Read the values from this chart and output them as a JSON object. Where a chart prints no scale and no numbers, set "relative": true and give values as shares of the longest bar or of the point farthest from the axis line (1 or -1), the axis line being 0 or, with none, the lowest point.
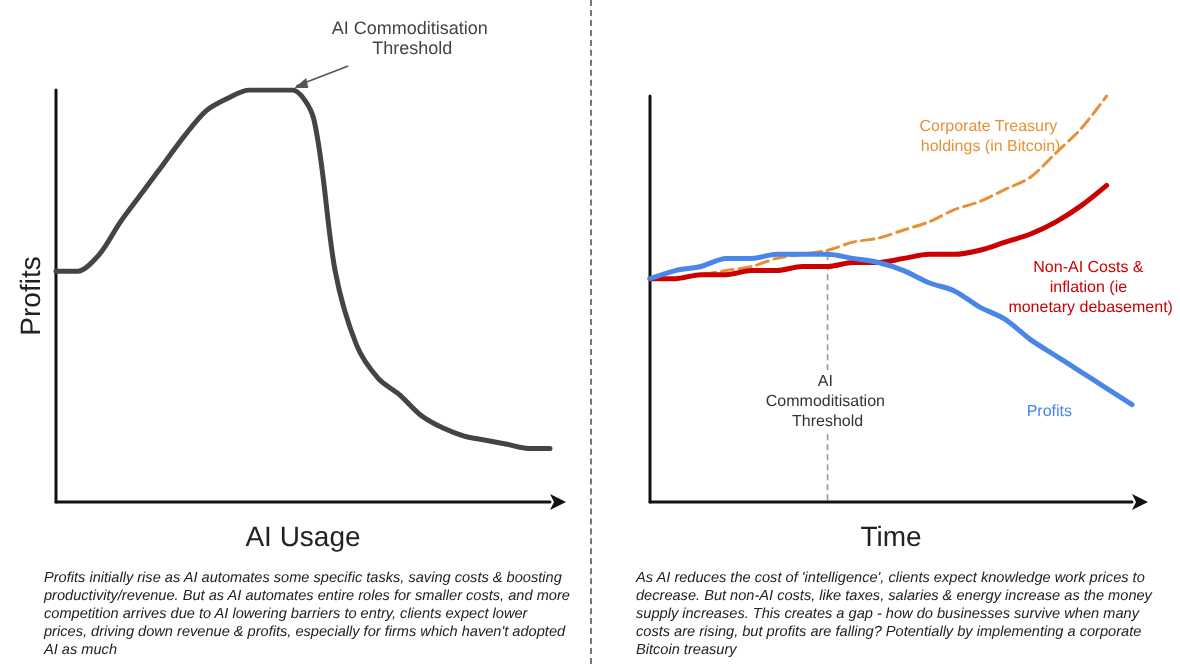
{
  "chart_data": [
    {
      "type": "line",
      "xlabel": "AI Usage",
      "ylabel": "Profits",
      "relative": true,
      "categories": [
        null,
        null,
        null,
        null,
        null,
        null,
        null,
        null,
        null,
        null,
        null,
        null,
        null,
        null,
        null,
        null,
        null,
        null,
        null,
        null,
        null,
        null,
        null,
        null
      ],
      "series": [
        {
          "color": "#444444",
          "values": [
            0.56,
            0.56,
            0.6,
            0.68,
            0.75,
            0.82,
            0.89,
            0.95,
            0.98,
            1,
            1,
            1,
            0.93,
            0.56,
            0.38,
            0.3,
            0.26,
            0.21,
            0.18,
            0.16,
            0.15,
            0.14,
            0.13,
            0.13
          ]
        }
      ],
      "annotations": [
        "AI Commoditisation Threshold",
        "Profits initially rise as AI automates some specific tasks, saving costs & boosting productivity/revenue. But as AI automates entire roles for smaller costs, and more competition arrives due to AI lowering barriers to entry, clients expect lower prices, driving down revenue & profits, especially for firms which haven't adopted AI as much"
      ]
    },
    {
      "type": "line",
      "xlabel": "Time",
      "relative": true,
      "categories": [
        null,
        null,
        null,
        null,
        null,
        null,
        null,
        null,
        null,
        null,
        null,
        null,
        null,
        null,
        null,
        null,
        null,
        null,
        null,
        null
      ],
      "series": [
        {
          "name": "Corporate Treasury holdings (in Bitcoin)",
          "color": "#e69138",
          "line_style": "dashed",
          "values": [
            0.55,
            0.55,
            0.56,
            0.57,
            0.58,
            0.6,
            0.61,
            0.62,
            0.64,
            0.65,
            0.67,
            0.69,
            0.72,
            0.74,
            0.77,
            0.8,
            0.86,
            0.92,
            1,
            null
          ]
        },
        {
          "name": "Non-AI Costs & inflation (ie monetary debasement)",
          "color": "#cc0000",
          "values": [
            0.55,
            0.55,
            0.56,
            0.56,
            0.57,
            0.57,
            0.58,
            0.58,
            0.59,
            0.59,
            0.6,
            0.61,
            0.61,
            0.62,
            0.64,
            0.66,
            0.69,
            0.73,
            0.78,
            null
          ]
        },
        {
          "name": "Profits",
          "color": "#4a86e8",
          "values": [
            0.55,
            0.57,
            0.58,
            0.6,
            0.6,
            0.61,
            0.61,
            0.61,
            0.6,
            0.59,
            0.57,
            0.54,
            0.52,
            0.48,
            0.45,
            0.4,
            0.36,
            0.32,
            0.28,
            0.24
          ]
        }
      ],
      "annotations": [
        "AI Commoditisation Threshold",
        "As AI reduces the cost of 'intelligence', clients expect knowledge work prices to decrease. But non-AI costs, like taxes, salaries & energy increase as the money supply increases. This creates a gap - how do businesses survive when many costs are rising, but profits are falling? Potentially by implementing a corporate Bitcoin treasury"
      ]
    }
  ]
}
